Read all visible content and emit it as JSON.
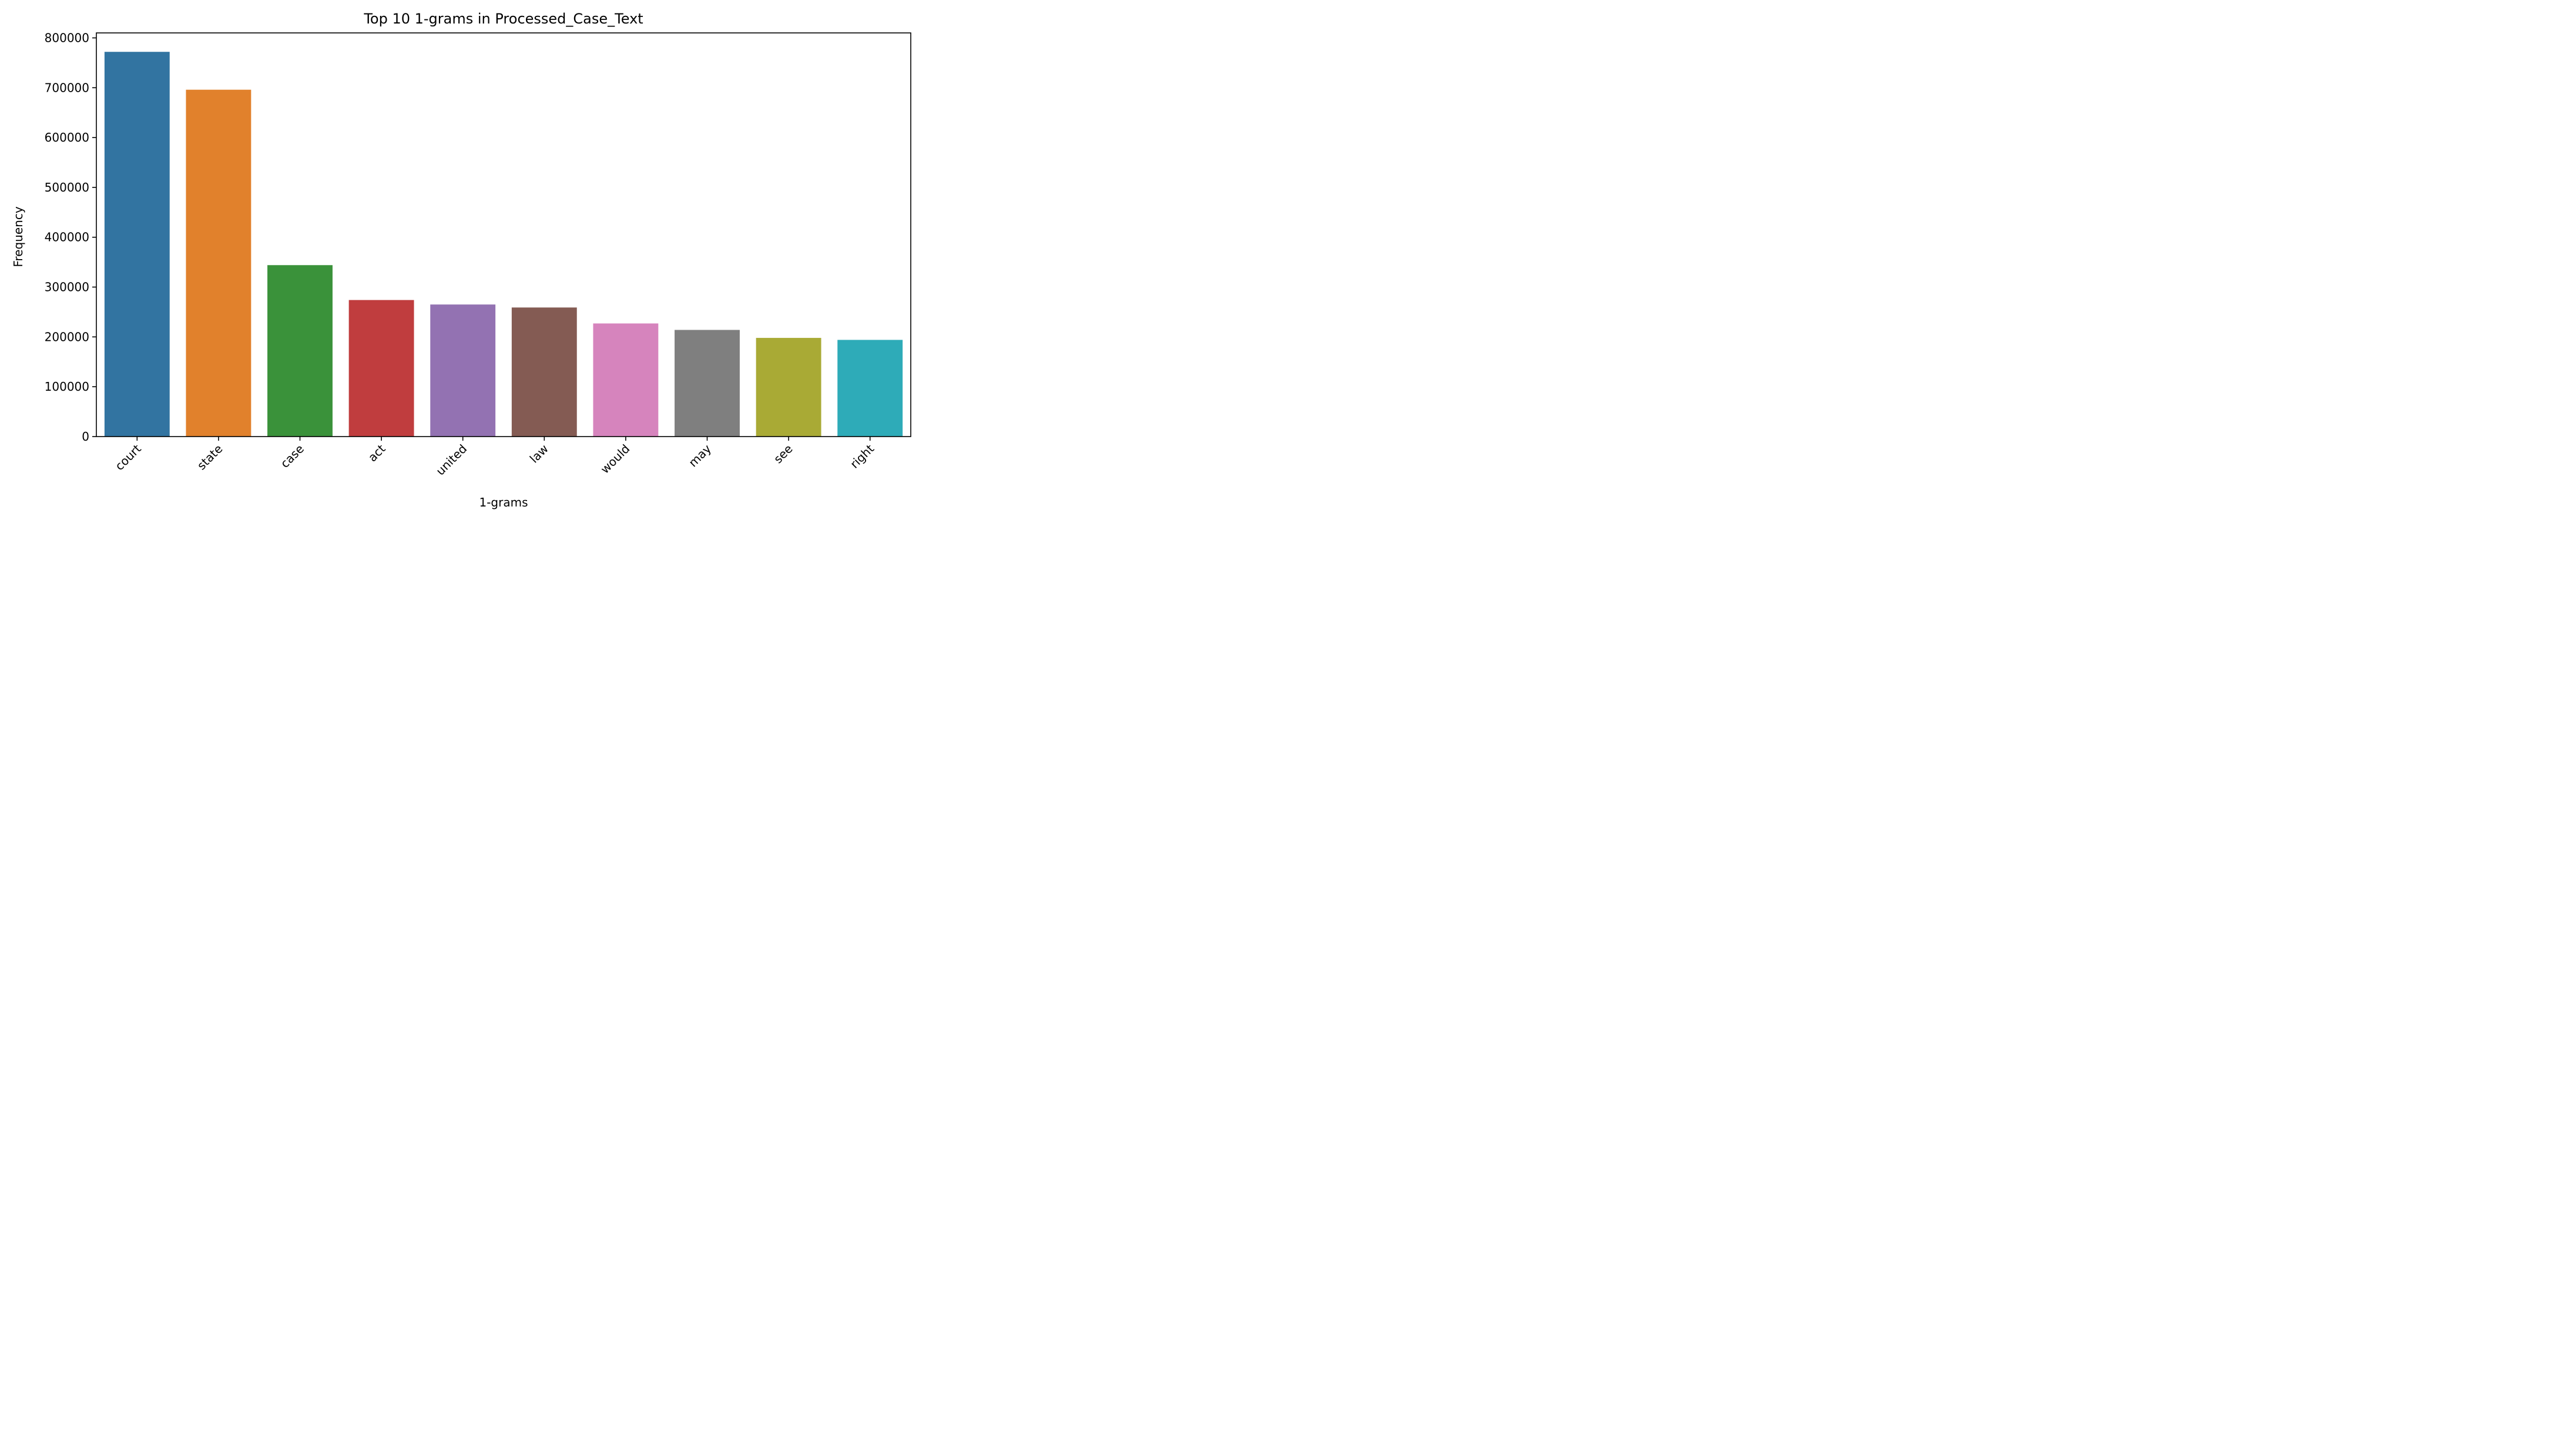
{
  "chart_data": {
    "type": "bar",
    "title": "Top 10 1-grams in Processed_Case_Text",
    "xlabel": "1-grams",
    "ylabel": "Frequency",
    "ylim": [
      0,
      810000
    ],
    "yticks": [
      0,
      100000,
      200000,
      300000,
      400000,
      500000,
      600000,
      700000,
      800000
    ],
    "grid": false,
    "legend": "none",
    "categories": [
      "court",
      "state",
      "case",
      "act",
      "united",
      "law",
      "would",
      "may",
      "see",
      "right"
    ],
    "values": [
      772000,
      696000,
      344000,
      274000,
      265000,
      259000,
      227000,
      214000,
      198000,
      194000
    ],
    "colors": [
      "#3274a1",
      "#e1812c",
      "#3a923a",
      "#c03d3e",
      "#9372b2",
      "#845b53",
      "#d684bd",
      "#7f7f7f",
      "#a9aa35",
      "#2eabb8"
    ]
  }
}
